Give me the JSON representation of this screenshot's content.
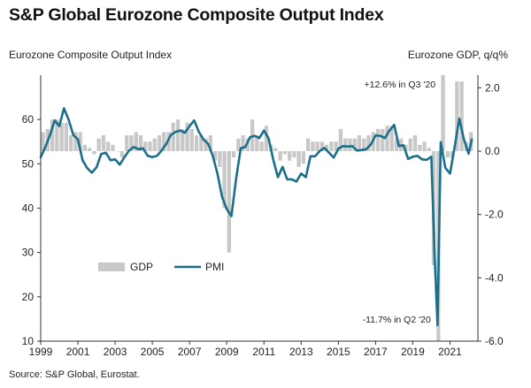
{
  "title": "S&P Global Eurozone Composite Output Index",
  "source": "Source: S&P Global, Eurostat.",
  "chart_data": {
    "type": "bar+line",
    "left_axis_label": "Eurozone Composite Output Index",
    "right_axis_label": "Eurozone GDP, q/q%",
    "left_ylim": [
      10,
      70
    ],
    "left_ticks": [
      10,
      20,
      30,
      40,
      50,
      60
    ],
    "right_ylim": [
      -6,
      2.4
    ],
    "right_ticks": [
      "2.0",
      "0.0",
      "-2.0",
      "-4.0",
      "-6.0"
    ],
    "right_tick_values": [
      2.0,
      0.0,
      -2.0,
      -4.0,
      -6.0
    ],
    "x_ticks": [
      "1999",
      "2001",
      "2003",
      "2005",
      "2007",
      "2009",
      "2011",
      "2013",
      "2015",
      "2017",
      "2019",
      "2021"
    ],
    "x_range": [
      1999.0,
      2022.5
    ],
    "legend": [
      "GDP",
      "PMI"
    ],
    "legend_position": "lower-left",
    "colors": {
      "gdp": "#c8c8c8",
      "pmi": "#1b6f8a"
    },
    "annotations": [
      {
        "text": "+12.6% in Q3 '20",
        "x": 2020.6,
        "value": 2.2
      },
      {
        "text": "-11.7% in Q2 '20",
        "x": 2020.35,
        "value": -5.3
      }
    ],
    "gdp_series": {
      "name": "GDP",
      "x": [
        1999.0,
        1999.25,
        1999.5,
        1999.75,
        2000.0,
        2000.25,
        2000.5,
        2000.75,
        2001.0,
        2001.25,
        2001.5,
        2001.75,
        2002.0,
        2002.25,
        2002.5,
        2002.75,
        2003.0,
        2003.25,
        2003.5,
        2003.75,
        2004.0,
        2004.25,
        2004.5,
        2004.75,
        2005.0,
        2005.25,
        2005.5,
        2005.75,
        2006.0,
        2006.25,
        2006.5,
        2006.75,
        2007.0,
        2007.25,
        2007.5,
        2007.75,
        2008.0,
        2008.25,
        2008.5,
        2008.75,
        2009.0,
        2009.25,
        2009.5,
        2009.75,
        2010.0,
        2010.25,
        2010.5,
        2010.75,
        2011.0,
        2011.25,
        2011.5,
        2011.75,
        2012.0,
        2012.25,
        2012.5,
        2012.75,
        2013.0,
        2013.25,
        2013.5,
        2013.75,
        2014.0,
        2014.25,
        2014.5,
        2014.75,
        2015.0,
        2015.25,
        2015.5,
        2015.75,
        2016.0,
        2016.25,
        2016.5,
        2016.75,
        2017.0,
        2017.25,
        2017.5,
        2017.75,
        2018.0,
        2018.25,
        2018.5,
        2018.75,
        2019.0,
        2019.25,
        2019.5,
        2019.75,
        2020.0,
        2020.25,
        2020.5,
        2020.75,
        2021.0,
        2021.25,
        2021.5,
        2021.75,
        2022.0
      ],
      "values": [
        0.6,
        0.7,
        1.0,
        1.0,
        0.9,
        0.9,
        0.5,
        0.6,
        0.6,
        0.2,
        0.1,
        -0.1,
        0.4,
        0.5,
        0.3,
        0.2,
        0.0,
        -0.2,
        0.5,
        0.5,
        0.6,
        0.5,
        0.3,
        0.3,
        0.4,
        0.5,
        0.6,
        0.6,
        0.9,
        1.0,
        0.7,
        0.9,
        0.7,
        0.5,
        0.5,
        0.4,
        0.5,
        -0.3,
        -0.5,
        -1.8,
        -3.2,
        -0.2,
        0.4,
        0.5,
        0.4,
        1.0,
        0.5,
        0.3,
        0.8,
        0.2,
        0.1,
        -0.3,
        -0.1,
        -0.3,
        -0.2,
        -0.5,
        -0.4,
        0.4,
        0.3,
        0.3,
        0.3,
        0.2,
        0.3,
        0.3,
        0.7,
        0.4,
        0.4,
        0.4,
        0.5,
        0.4,
        0.5,
        0.6,
        0.7,
        0.7,
        0.8,
        0.8,
        0.4,
        0.4,
        0.2,
        0.4,
        0.5,
        0.2,
        0.3,
        0.1,
        -3.6,
        -11.7,
        12.6,
        -0.2,
        -0.2,
        2.2,
        2.2,
        0.3,
        0.6
      ]
    },
    "pmi_series": {
      "name": "PMI",
      "x": [
        1999.0,
        1999.25,
        1999.5,
        1999.75,
        2000.0,
        2000.25,
        2000.5,
        2000.75,
        2001.0,
        2001.25,
        2001.5,
        2001.75,
        2002.0,
        2002.25,
        2002.5,
        2002.75,
        2003.0,
        2003.25,
        2003.5,
        2003.75,
        2004.0,
        2004.25,
        2004.5,
        2004.75,
        2005.0,
        2005.25,
        2005.5,
        2005.75,
        2006.0,
        2006.25,
        2006.5,
        2006.75,
        2007.0,
        2007.25,
        2007.5,
        2007.75,
        2008.0,
        2008.25,
        2008.5,
        2008.75,
        2009.0,
        2009.25,
        2009.5,
        2009.75,
        2010.0,
        2010.25,
        2010.5,
        2010.75,
        2011.0,
        2011.25,
        2011.5,
        2011.75,
        2012.0,
        2012.25,
        2012.5,
        2012.75,
        2013.0,
        2013.25,
        2013.5,
        2013.75,
        2014.0,
        2014.25,
        2014.5,
        2014.75,
        2015.0,
        2015.25,
        2015.5,
        2015.75,
        2016.0,
        2016.25,
        2016.5,
        2016.75,
        2017.0,
        2017.25,
        2017.5,
        2017.75,
        2018.0,
        2018.25,
        2018.5,
        2018.75,
        2019.0,
        2019.25,
        2019.5,
        2019.75,
        2020.0,
        2020.17,
        2020.33,
        2020.5,
        2020.75,
        2021.0,
        2021.25,
        2021.5,
        2021.75,
        2022.0,
        2022.17
      ],
      "values": [
        51.5,
        53.8,
        56.5,
        59.8,
        58.5,
        62.5,
        60.0,
        56.5,
        55.5,
        50.8,
        49.0,
        48.0,
        49.2,
        52.2,
        52.5,
        50.8,
        51.0,
        49.8,
        51.5,
        53.0,
        53.8,
        53.3,
        53.5,
        51.8,
        51.5,
        51.8,
        53.0,
        54.5,
        56.5,
        57.2,
        57.5,
        57.0,
        58.5,
        59.8,
        57.2,
        55.5,
        54.5,
        51.8,
        47.8,
        42.5,
        39.8,
        38.2,
        46.5,
        53.5,
        53.8,
        56.0,
        56.3,
        55.8,
        57.5,
        55.7,
        50.9,
        47.0,
        49.3,
        46.5,
        46.5,
        46.0,
        47.8,
        47.0,
        51.7,
        51.7,
        52.9,
        53.6,
        52.5,
        51.4,
        53.4,
        54.0,
        53.9,
        54.0,
        53.0,
        53.1,
        53.3,
        54.4,
        56.4,
        56.3,
        55.8,
        57.5,
        58.8,
        54.0,
        54.2,
        51.1,
        51.6,
        51.8,
        51.0,
        50.9,
        51.6,
        29.7,
        13.6,
        54.9,
        49.1,
        47.8,
        53.8,
        60.2,
        55.5,
        52.3,
        55.5
      ]
    }
  }
}
